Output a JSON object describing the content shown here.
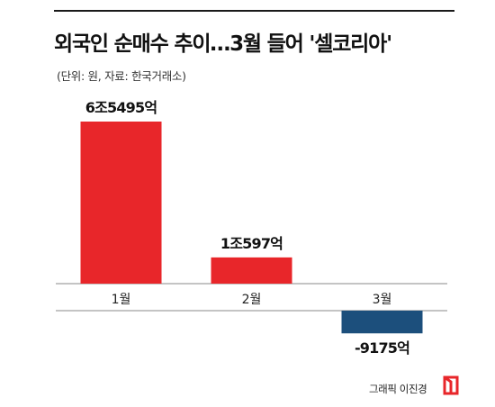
{
  "title": "외국인 순매수 추이…3월 들어 '셀코리아'",
  "subtitle": "(단위: 원, 자료: 한국거래소)",
  "credit": "그래픽 이진경",
  "colors": {
    "positive": "#e8262a",
    "negative": "#1c4f7c",
    "axis": "#8a8a8a"
  },
  "chart_data": {
    "type": "bar",
    "title": "외국인 순매수 추이…3월 들어 '셀코리아'",
    "categories": [
      "1월",
      "2월",
      "3월"
    ],
    "values": [
      65495,
      10597,
      -9175
    ],
    "value_unit": "억원",
    "data_labels": [
      "6조5495억",
      "1조597억",
      "-9175억"
    ],
    "xlabel": "",
    "ylabel": "",
    "grid": false,
    "legend": "none"
  }
}
